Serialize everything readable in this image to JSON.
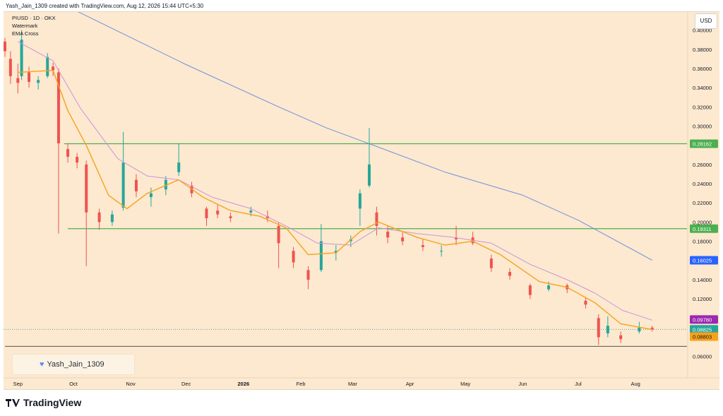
{
  "header": {
    "caption": "Yash_Jain_1309 created with TradingView.com, Aug 12, 2026 15:44 UTC+5:30"
  },
  "legend": {
    "symbol": "PIUSD · 1D · OKX",
    "indicator1": "Watermark",
    "indicator2": "EMA Cross"
  },
  "watermark": {
    "icon": "heart-icon",
    "text": "Yash_Jain_1309"
  },
  "currency": "USD",
  "footer": {
    "brand": "TradingView",
    "icon": "tradingview-logo-icon"
  },
  "chart_data": {
    "type": "candlestick",
    "symbol": "PIUSD · 1D · OKX",
    "ylim": [
      0.048,
      0.41
    ],
    "y_ticks": [
      "0.40000",
      "0.38000",
      "0.36000",
      "0.34000",
      "0.32000",
      "0.30000",
      "0.28000",
      "0.26000",
      "0.24000",
      "0.22000",
      "0.20000",
      "0.18000",
      "0.16000",
      "0.14000",
      "0.12000",
      "0.10000",
      "0.08000",
      "0.06000"
    ],
    "x_ticks": [
      "Sep",
      "Oct",
      "Nov",
      "Dec",
      "2026",
      "Feb",
      "Mar",
      "Apr",
      "May",
      "Jun",
      "Jul",
      "Aug"
    ],
    "x_tick_dates": [
      "2025-09-01",
      "2025-10-01",
      "2025-11-01",
      "2025-12-01",
      "2026-01-01",
      "2026-02-01",
      "2026-03-01",
      "2026-04-01",
      "2026-05-01",
      "2026-06-01",
      "2026-07-01",
      "2026-08-01"
    ],
    "ohlc_daily_approx": [
      {
        "date": "2025-08-25",
        "open": 0.388,
        "high": 0.392,
        "low": 0.372,
        "close": 0.378
      },
      {
        "date": "2025-08-28",
        "open": 0.37,
        "high": 0.378,
        "low": 0.344,
        "close": 0.352
      },
      {
        "date": "2025-09-01",
        "open": 0.35,
        "high": 0.365,
        "low": 0.334,
        "close": 0.345
      },
      {
        "date": "2025-09-03",
        "open": 0.352,
        "high": 0.4,
        "low": 0.348,
        "close": 0.39
      },
      {
        "date": "2025-09-07",
        "open": 0.356,
        "high": 0.362,
        "low": 0.34,
        "close": 0.346
      },
      {
        "date": "2025-09-12",
        "open": 0.345,
        "high": 0.352,
        "low": 0.338,
        "close": 0.348
      },
      {
        "date": "2025-09-17",
        "open": 0.352,
        "high": 0.376,
        "low": 0.35,
        "close": 0.372
      },
      {
        "date": "2025-09-20",
        "open": 0.362,
        "high": 0.366,
        "low": 0.352,
        "close": 0.358
      },
      {
        "date": "2025-09-23",
        "open": 0.356,
        "high": 0.36,
        "low": 0.188,
        "close": 0.282
      },
      {
        "date": "2025-09-28",
        "open": 0.276,
        "high": 0.282,
        "low": 0.262,
        "close": 0.268
      },
      {
        "date": "2025-10-03",
        "open": 0.268,
        "high": 0.272,
        "low": 0.256,
        "close": 0.262
      },
      {
        "date": "2025-10-08",
        "open": 0.26,
        "high": 0.264,
        "low": 0.154,
        "close": 0.21
      },
      {
        "date": "2025-10-15",
        "open": 0.21,
        "high": 0.214,
        "low": 0.192,
        "close": 0.2
      },
      {
        "date": "2025-10-22",
        "open": 0.2,
        "high": 0.212,
        "low": 0.196,
        "close": 0.208
      },
      {
        "date": "2025-10-28",
        "open": 0.215,
        "high": 0.294,
        "low": 0.212,
        "close": 0.262
      },
      {
        "date": "2025-11-04",
        "open": 0.244,
        "high": 0.25,
        "low": 0.226,
        "close": 0.232
      },
      {
        "date": "2025-11-12",
        "open": 0.226,
        "high": 0.236,
        "low": 0.216,
        "close": 0.23
      },
      {
        "date": "2025-11-20",
        "open": 0.234,
        "high": 0.248,
        "low": 0.228,
        "close": 0.244
      },
      {
        "date": "2025-11-27",
        "open": 0.252,
        "high": 0.282,
        "low": 0.248,
        "close": 0.262
      },
      {
        "date": "2025-12-04",
        "open": 0.238,
        "high": 0.242,
        "low": 0.226,
        "close": 0.23
      },
      {
        "date": "2025-12-12",
        "open": 0.214,
        "high": 0.216,
        "low": 0.196,
        "close": 0.204
      },
      {
        "date": "2025-12-18",
        "open": 0.212,
        "high": 0.218,
        "low": 0.204,
        "close": 0.208
      },
      {
        "date": "2025-12-25",
        "open": 0.206,
        "high": 0.21,
        "low": 0.2,
        "close": 0.204
      },
      {
        "date": "2026-01-05",
        "open": 0.21,
        "high": 0.216,
        "low": 0.206,
        "close": 0.212
      },
      {
        "date": "2026-01-14",
        "open": 0.206,
        "high": 0.212,
        "low": 0.2,
        "close": 0.204
      },
      {
        "date": "2026-01-20",
        "open": 0.196,
        "high": 0.2,
        "low": 0.152,
        "close": 0.178
      },
      {
        "date": "2026-01-28",
        "open": 0.17,
        "high": 0.174,
        "low": 0.152,
        "close": 0.158
      },
      {
        "date": "2026-02-05",
        "open": 0.15,
        "high": 0.154,
        "low": 0.13,
        "close": 0.14
      },
      {
        "date": "2026-02-12",
        "open": 0.15,
        "high": 0.198,
        "low": 0.148,
        "close": 0.18
      },
      {
        "date": "2026-02-20",
        "open": 0.168,
        "high": 0.176,
        "low": 0.16,
        "close": 0.17
      },
      {
        "date": "2026-02-28",
        "open": 0.18,
        "high": 0.186,
        "low": 0.174,
        "close": 0.182
      },
      {
        "date": "2026-03-05",
        "open": 0.214,
        "high": 0.234,
        "low": 0.196,
        "close": 0.23
      },
      {
        "date": "2026-03-10",
        "open": 0.238,
        "high": 0.298,
        "low": 0.236,
        "close": 0.26
      },
      {
        "date": "2026-03-14",
        "open": 0.21,
        "high": 0.216,
        "low": 0.186,
        "close": 0.196
      },
      {
        "date": "2026-03-20",
        "open": 0.19,
        "high": 0.196,
        "low": 0.178,
        "close": 0.184
      },
      {
        "date": "2026-03-28",
        "open": 0.184,
        "high": 0.19,
        "low": 0.176,
        "close": 0.18
      },
      {
        "date": "2026-04-08",
        "open": 0.176,
        "high": 0.182,
        "low": 0.17,
        "close": 0.174
      },
      {
        "date": "2026-04-18",
        "open": 0.17,
        "high": 0.176,
        "low": 0.164,
        "close": 0.17
      },
      {
        "date": "2026-04-26",
        "open": 0.184,
        "high": 0.196,
        "low": 0.176,
        "close": 0.182
      },
      {
        "date": "2026-05-05",
        "open": 0.184,
        "high": 0.19,
        "low": 0.176,
        "close": 0.178
      },
      {
        "date": "2026-05-15",
        "open": 0.162,
        "high": 0.166,
        "low": 0.148,
        "close": 0.152
      },
      {
        "date": "2026-05-25",
        "open": 0.148,
        "high": 0.152,
        "low": 0.14,
        "close": 0.144
      },
      {
        "date": "2026-06-05",
        "open": 0.134,
        "high": 0.136,
        "low": 0.12,
        "close": 0.124
      },
      {
        "date": "2026-06-15",
        "open": 0.13,
        "high": 0.138,
        "low": 0.128,
        "close": 0.134
      },
      {
        "date": "2026-06-25",
        "open": 0.134,
        "high": 0.136,
        "low": 0.126,
        "close": 0.13
      },
      {
        "date": "2026-07-05",
        "open": 0.118,
        "high": 0.122,
        "low": 0.11,
        "close": 0.114
      },
      {
        "date": "2026-07-12",
        "open": 0.1,
        "high": 0.104,
        "low": 0.072,
        "close": 0.08
      },
      {
        "date": "2026-07-17",
        "open": 0.084,
        "high": 0.102,
        "low": 0.08,
        "close": 0.092
      },
      {
        "date": "2026-07-24",
        "open": 0.082,
        "high": 0.086,
        "low": 0.074,
        "close": 0.078
      },
      {
        "date": "2026-08-03",
        "open": 0.086,
        "high": 0.096,
        "low": 0.084,
        "close": 0.09
      },
      {
        "date": "2026-08-10",
        "open": 0.09,
        "high": 0.092,
        "low": 0.086,
        "close": 0.088
      }
    ],
    "ema_fast": [
      {
        "date": "2025-09-01",
        "value": 0.356
      },
      {
        "date": "2025-09-20",
        "value": 0.358
      },
      {
        "date": "2025-09-28",
        "value": 0.316
      },
      {
        "date": "2025-10-08",
        "value": 0.28
      },
      {
        "date": "2025-10-20",
        "value": 0.228
      },
      {
        "date": "2025-10-30",
        "value": 0.214
      },
      {
        "date": "2025-11-10",
        "value": 0.23
      },
      {
        "date": "2025-11-27",
        "value": 0.244
      },
      {
        "date": "2025-12-10",
        "value": 0.226
      },
      {
        "date": "2025-12-25",
        "value": 0.212
      },
      {
        "date": "2026-01-10",
        "value": 0.206
      },
      {
        "date": "2026-01-24",
        "value": 0.194
      },
      {
        "date": "2026-02-05",
        "value": 0.166
      },
      {
        "date": "2026-02-20",
        "value": 0.168
      },
      {
        "date": "2026-03-05",
        "value": 0.19
      },
      {
        "date": "2026-03-15",
        "value": 0.2
      },
      {
        "date": "2026-04-05",
        "value": 0.184
      },
      {
        "date": "2026-04-20",
        "value": 0.176
      },
      {
        "date": "2026-05-05",
        "value": 0.18
      },
      {
        "date": "2026-05-20",
        "value": 0.166
      },
      {
        "date": "2026-06-10",
        "value": 0.138
      },
      {
        "date": "2026-06-25",
        "value": 0.132
      },
      {
        "date": "2026-07-10",
        "value": 0.116
      },
      {
        "date": "2026-07-24",
        "value": 0.094
      },
      {
        "date": "2026-08-10",
        "value": 0.08803
      }
    ],
    "ema_slow": [
      {
        "date": "2025-09-01",
        "value": 0.388
      },
      {
        "date": "2025-09-20",
        "value": 0.368
      },
      {
        "date": "2025-10-05",
        "value": 0.318
      },
      {
        "date": "2025-10-25",
        "value": 0.266
      },
      {
        "date": "2025-11-10",
        "value": 0.248
      },
      {
        "date": "2025-11-27",
        "value": 0.244
      },
      {
        "date": "2025-12-15",
        "value": 0.226
      },
      {
        "date": "2026-01-05",
        "value": 0.214
      },
      {
        "date": "2026-01-24",
        "value": 0.196
      },
      {
        "date": "2026-02-10",
        "value": 0.178
      },
      {
        "date": "2026-02-28",
        "value": 0.176
      },
      {
        "date": "2026-03-15",
        "value": 0.194
      },
      {
        "date": "2026-04-05",
        "value": 0.188
      },
      {
        "date": "2026-04-25",
        "value": 0.184
      },
      {
        "date": "2026-05-15",
        "value": 0.178
      },
      {
        "date": "2026-06-05",
        "value": 0.156
      },
      {
        "date": "2026-06-25",
        "value": 0.14
      },
      {
        "date": "2026-07-10",
        "value": 0.126
      },
      {
        "date": "2026-07-25",
        "value": 0.108
      },
      {
        "date": "2026-08-10",
        "value": 0.0978
      }
    ],
    "sma_long": [
      {
        "date": "2025-09-22",
        "value": 0.43
      },
      {
        "date": "2025-12-01",
        "value": 0.364
      },
      {
        "date": "2026-01-20",
        "value": 0.32
      },
      {
        "date": "2026-02-15",
        "value": 0.298
      },
      {
        "date": "2026-03-15",
        "value": 0.278
      },
      {
        "date": "2026-04-20",
        "value": 0.252
      },
      {
        "date": "2026-06-01",
        "value": 0.228
      },
      {
        "date": "2026-07-01",
        "value": 0.202
      },
      {
        "date": "2026-08-10",
        "value": 0.16025
      }
    ],
    "horizontal_levels": [
      {
        "value": 0.28162,
        "start": "2025-09-26",
        "label": "0.28162",
        "color": "#4caf50"
      },
      {
        "value": 0.19311,
        "start": "2025-09-28",
        "label": "0.19311",
        "color": "#4caf50"
      },
      {
        "value": 0.0705,
        "start": "2025-08-25",
        "color": "#555555"
      }
    ],
    "price_labels": [
      {
        "value": 0.28162,
        "text": "0.28162",
        "bg": "#4caf50",
        "fg": "#ffffff"
      },
      {
        "value": 0.19311,
        "text": "0.19311",
        "bg": "#4caf50",
        "fg": "#ffffff"
      },
      {
        "value": 0.16025,
        "text": "0.16025",
        "bg": "#2962ff",
        "fg": "#ffffff"
      },
      {
        "value": 0.0978,
        "text": "0.09780",
        "bg": "#9c27b0",
        "fg": "#ffffff"
      },
      {
        "value": 0.08825,
        "text": "0.08825",
        "bg": "#26a69a",
        "fg": "#ffffff"
      },
      {
        "value": 0.08803,
        "text": "0.08803",
        "bg": "#f7a21b",
        "fg": "#131722"
      }
    ],
    "colors": {
      "up": "#26a69a",
      "down": "#ef5350",
      "ema_fast": "#f7a21b",
      "ema_slow": "#ce93d8",
      "sma_long": "#6f8fe0",
      "background": "#fce9cf"
    }
  }
}
